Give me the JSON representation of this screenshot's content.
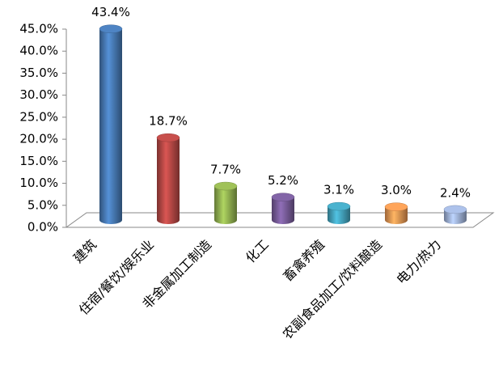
{
  "chart_data": {
    "type": "bar3d",
    "categories": [
      "建筑",
      "住宿/餐饮/娱乐业",
      "非金属加工制造",
      "化工",
      "畜禽养殖",
      "农副食品加工/饮料酿造",
      "电力/热力"
    ],
    "values": [
      43.4,
      18.7,
      7.7,
      5.2,
      3.1,
      3.0,
      2.4
    ],
    "value_labels": [
      "43.4%",
      "18.7%",
      "7.7%",
      "5.2%",
      "3.1%",
      "3.0%",
      "2.4%"
    ],
    "colors": [
      "#4a7ebb",
      "#be4b48",
      "#98b954",
      "#7d60a0",
      "#46aac5",
      "#f59d56",
      "#a5b9e0"
    ],
    "ylim": [
      0,
      45
    ],
    "yticks": [
      {
        "value": 0,
        "label": "0.0%"
      },
      {
        "value": 5,
        "label": "5.0%"
      },
      {
        "value": 10,
        "label": "10.0%"
      },
      {
        "value": 15,
        "label": "15.0%"
      },
      {
        "value": 20,
        "label": "20.0%"
      },
      {
        "value": 25,
        "label": "25.0%"
      },
      {
        "value": 30,
        "label": "30.0%"
      },
      {
        "value": 35,
        "label": "35.0%"
      },
      {
        "value": 40,
        "label": "40.0%"
      },
      {
        "value": 45,
        "label": "45.0%"
      }
    ]
  }
}
